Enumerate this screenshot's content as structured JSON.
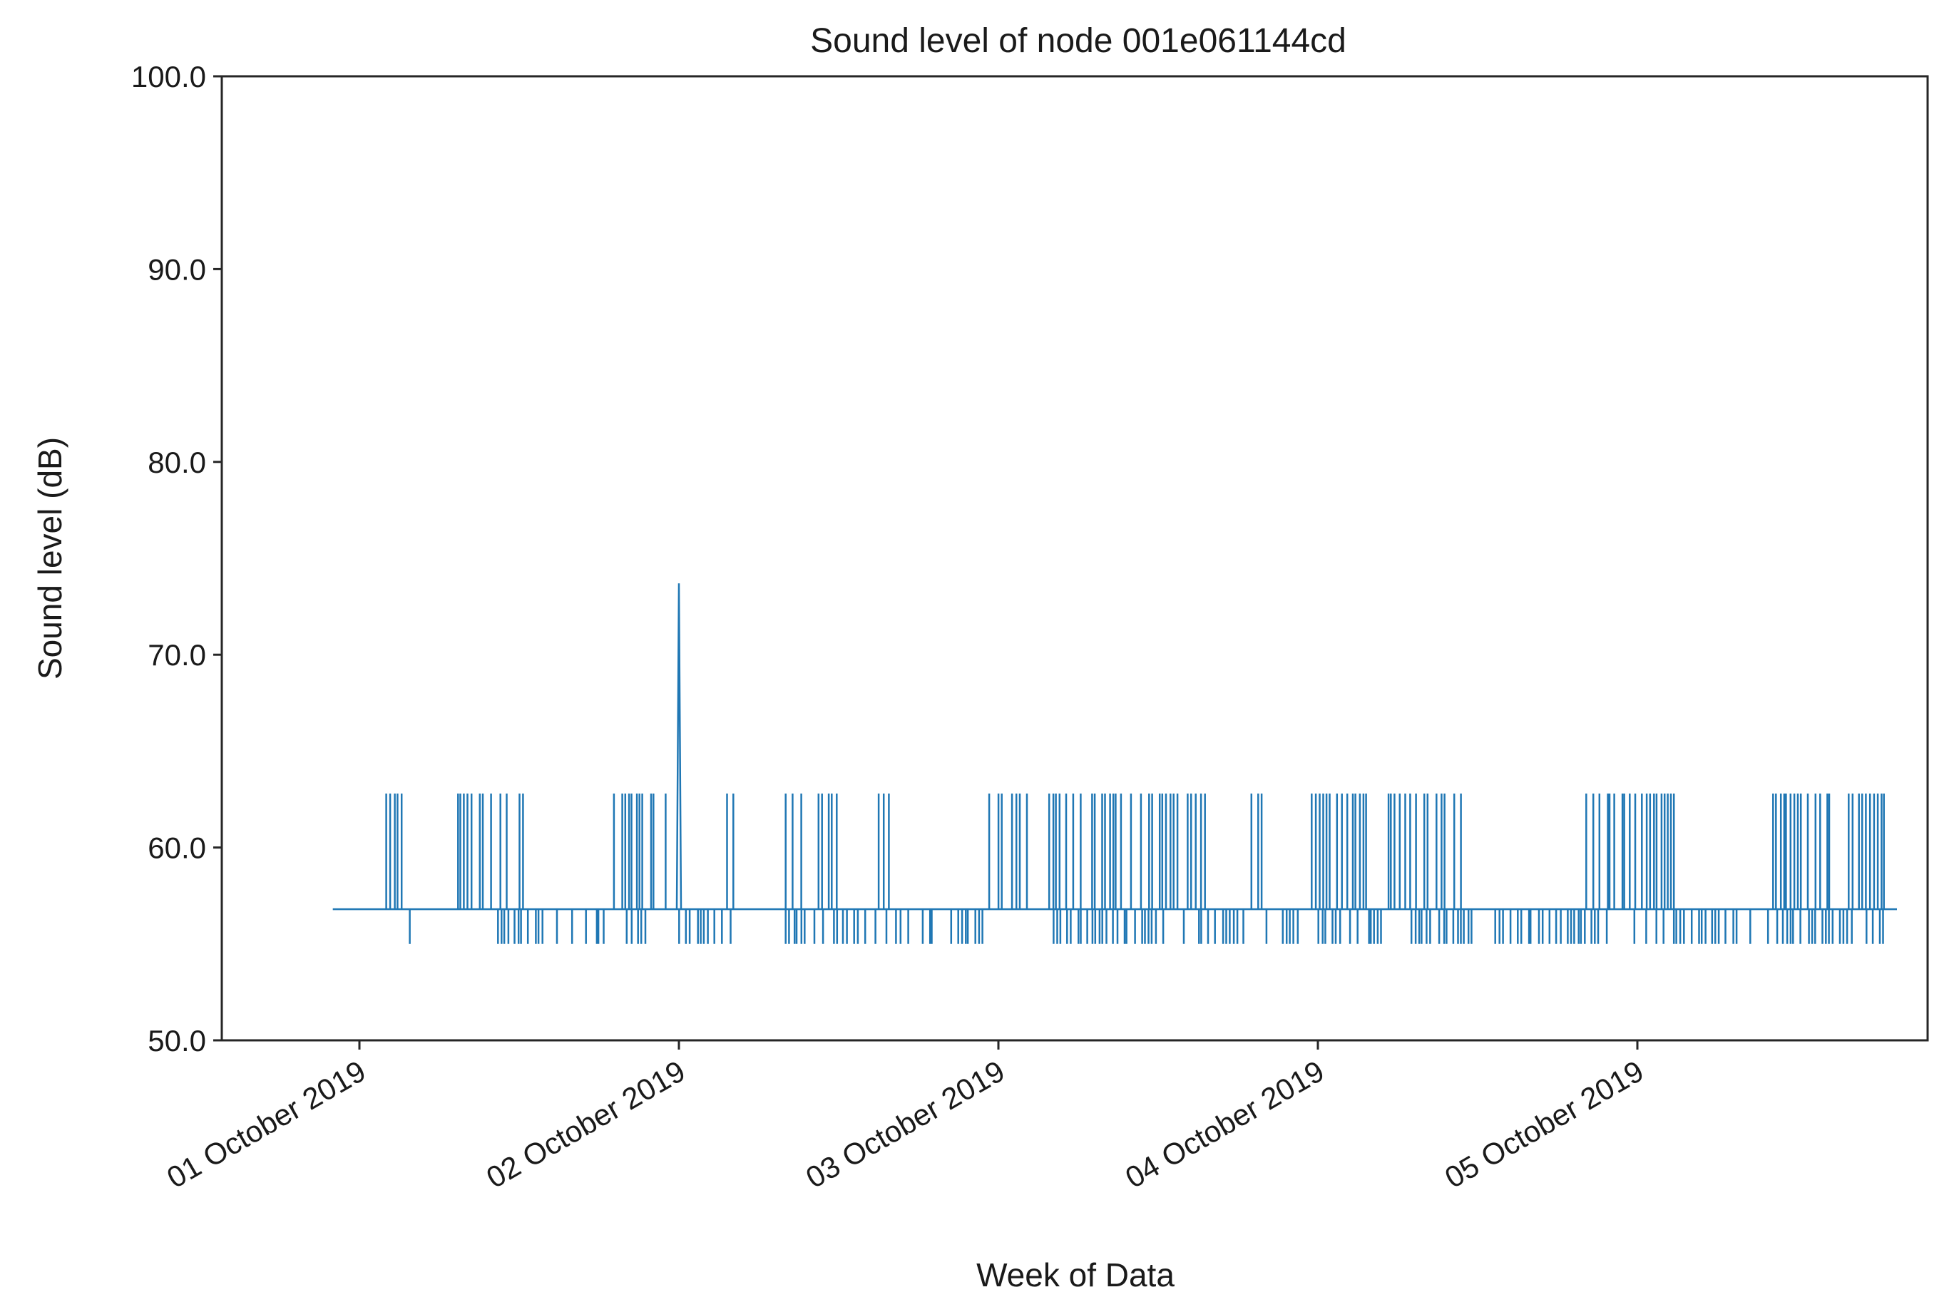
{
  "chart_data": {
    "type": "line",
    "title": "Sound level of node 001e061144cd",
    "xlabel": "Week of Data",
    "ylabel": "Sound level (dB)",
    "ylim": [
      50.0,
      100.0
    ],
    "xlim": [
      "2019-09-30T10:00",
      "2019-10-06T00:00"
    ],
    "yticks": [
      {
        "value": 50.0,
        "label": "50.0"
      },
      {
        "value": 60.0,
        "label": "60.0"
      },
      {
        "value": 70.0,
        "label": "70.0"
      },
      {
        "value": 80.0,
        "label": "80.0"
      },
      {
        "value": 90.0,
        "label": "90.0"
      },
      {
        "value": 100.0,
        "label": "100.0"
      }
    ],
    "xticks": [
      {
        "value": "2019-10-01T00:00",
        "label": "01 October 2019"
      },
      {
        "value": "2019-10-02T00:00",
        "label": "02 October 2019"
      },
      {
        "value": "2019-10-03T00:00",
        "label": "03 October 2019"
      },
      {
        "value": "2019-10-04T00:00",
        "label": "04 October 2019"
      },
      {
        "value": "2019-10-05T00:00",
        "label": "05 October 2019"
      }
    ],
    "grid": false,
    "legend": "none",
    "line_color": "#1f77b4",
    "baseline_db": 56.8,
    "high_db": 62.8,
    "low_db": 55.0,
    "peak": {
      "time": "2019-10-02T00:00",
      "value": 73.7
    },
    "series": [
      {
        "values": [
          {
            "start": "2019-09-30T22:00",
            "end": "2019-10-02T00:00",
            "level": 56.8
          },
          {
            "start": "2019-10-01T02:00",
            "end": "2019-10-01T04:00",
            "level": 62.8
          },
          {
            "start": "2019-10-01T03:30",
            "end": "2019-10-01T04:00",
            "level": 55.0
          },
          {
            "start": "2019-10-01T07:00",
            "end": "2019-10-01T10:00",
            "level": 62.8
          },
          {
            "start": "2019-10-01T10:30",
            "end": "2019-10-01T13:00",
            "level": 62.8
          },
          {
            "start": "2019-10-01T10:00",
            "end": "2019-10-01T19:00",
            "level": 55.0
          },
          {
            "start": "2019-10-01T18:30",
            "end": "2019-10-01T21:30",
            "level": 62.8
          },
          {
            "start": "2019-10-01T20:00",
            "end": "2019-10-01T22:00",
            "level": 55.0
          },
          {
            "start": "2019-10-01T21:30",
            "end": "2019-10-01T23:30",
            "level": 62.8
          },
          {
            "start": "2019-10-02T00:00",
            "end": "2019-10-02T00:00",
            "level": 73.7
          },
          {
            "start": "2019-10-02T00:00",
            "end": "2019-10-02T01:00",
            "level": 55.0
          },
          {
            "start": "2019-10-02T01:00",
            "end": "2019-10-02T04:00",
            "level": 55.0
          },
          {
            "start": "2019-10-02T03:30",
            "end": "2019-10-02T04:30",
            "level": 62.8
          },
          {
            "start": "2019-10-02T08:00",
            "end": "2019-10-02T12:00",
            "level": 62.8
          },
          {
            "start": "2019-10-02T08:00",
            "end": "2019-10-02T15:00",
            "level": 55.0
          },
          {
            "start": "2019-10-02T15:00",
            "end": "2019-10-02T16:00",
            "level": 62.8
          },
          {
            "start": "2019-10-02T15:30",
            "end": "2019-10-02T23:00",
            "level": 55.0
          },
          {
            "start": "2019-10-02T23:00",
            "end": "2019-10-03T00:30",
            "level": 62.8
          },
          {
            "start": "2019-10-03T01:00",
            "end": "2019-10-03T04:00",
            "level": 62.8
          },
          {
            "start": "2019-10-03T04:00",
            "end": "2019-10-03T16:00",
            "level": 62.8
          },
          {
            "start": "2019-10-03T04:00",
            "end": "2019-10-04T00:00",
            "level": 55.0
          },
          {
            "start": "2019-10-03T19:00",
            "end": "2019-10-03T20:00",
            "level": 62.8
          },
          {
            "start": "2019-10-03T23:30",
            "end": "2019-10-04T06:00",
            "level": 62.8
          },
          {
            "start": "2019-10-04T00:00",
            "end": "2019-10-04T04:00",
            "level": 55.0
          },
          {
            "start": "2019-10-04T03:00",
            "end": "2019-10-04T05:00",
            "level": 55.0
          },
          {
            "start": "2019-10-04T06:00",
            "end": "2019-10-04T11:00",
            "level": 62.8
          },
          {
            "start": "2019-10-04T07:00",
            "end": "2019-10-04T12:00",
            "level": 55.0
          },
          {
            "start": "2019-10-04T12:30",
            "end": "2019-10-04T23:59",
            "level": 55.0
          },
          {
            "start": "2019-10-04T20:00",
            "end": "2019-10-04T23:00",
            "level": 62.8
          },
          {
            "start": "2019-10-04T23:00",
            "end": "2019-10-05T03:00",
            "level": 62.8
          },
          {
            "start": "2019-10-05T00:00",
            "end": "2019-10-05T09:00",
            "level": 55.0
          },
          {
            "start": "2019-10-05T09:00",
            "end": "2019-10-05T19:00",
            "level": 62.8
          },
          {
            "start": "2019-10-05T09:00",
            "end": "2019-10-05T19:30",
            "level": 55.0
          }
        ]
      }
    ]
  }
}
